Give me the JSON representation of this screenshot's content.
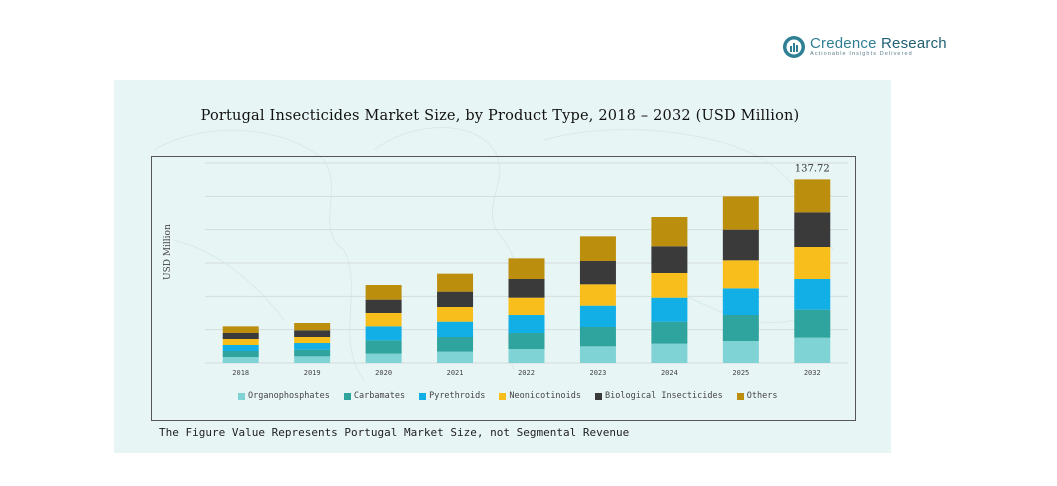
{
  "brand": {
    "name_part1": "Credence",
    "name_part2": " Research",
    "tagline": "Actionable Insights Delivered"
  },
  "chart_data": {
    "type": "bar",
    "stacked": true,
    "title": "Portugal Insecticides Market Size, by Product Type, 2018  –  2032 (USD Million)",
    "ylabel": "USD Million",
    "xlabel": "",
    "categories": [
      "2018",
      "2019",
      "2020",
      "2021",
      "2022",
      "2023",
      "2024",
      "2025",
      "2032"
    ],
    "ylim": [
      0,
      150
    ],
    "grid": true,
    "legend_position": "bottom",
    "series": [
      {
        "name": "Organophosphates",
        "color": "#7fd3d4",
        "values": [
          4.5,
          5,
          7,
          8.5,
          10.5,
          12.5,
          14.5,
          16.5,
          19
        ]
      },
      {
        "name": "Carbamates",
        "color": "#2fa39d",
        "values": [
          4.5,
          5,
          10,
          11,
          12,
          14.5,
          16.5,
          19.5,
          21
        ]
      },
      {
        "name": "Pyrethroids",
        "color": "#12aee6",
        "values": [
          4.5,
          5,
          10.5,
          11.5,
          13.5,
          16,
          18,
          20,
          23
        ]
      },
      {
        "name": "Neonicotinoids",
        "color": "#f8be1b",
        "values": [
          4.5,
          4.5,
          10,
          11,
          13,
          16,
          18.5,
          21,
          24
        ]
      },
      {
        "name": "Biological Insecticides",
        "color": "#3a3a3a",
        "values": [
          4.5,
          5,
          10,
          11.5,
          14,
          17.5,
          20,
          23,
          26
        ]
      },
      {
        "name": "Others",
        "color": "#bb8e0e",
        "values": [
          5,
          5.5,
          11,
          13.5,
          15.5,
          18.5,
          22,
          25,
          24.72
        ]
      }
    ],
    "annotations": [
      {
        "category": "2032",
        "text": "137.72"
      }
    ]
  },
  "footnote": "The Figure Value Represents Portugal Market Size, not Segmental Revenue"
}
